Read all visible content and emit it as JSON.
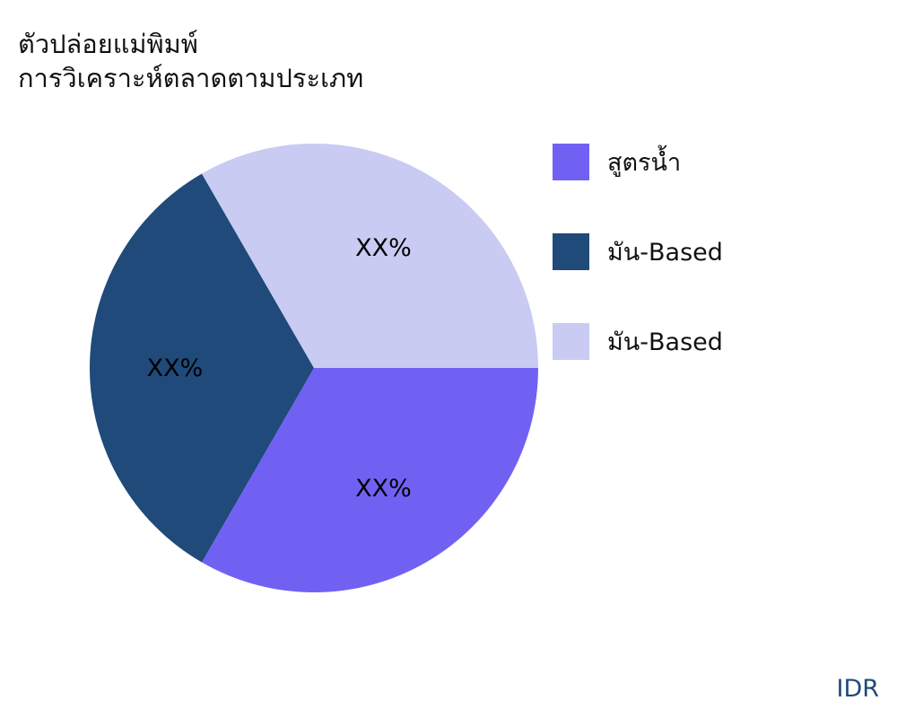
{
  "chart_data": {
    "type": "pie",
    "title": [
      "ตัวปล่อยแม่พิมพ์",
      "การวิเคราะห์ตลาดตามประเภท"
    ],
    "slices": [
      {
        "name": "สูตรน้ำ",
        "value": 33.33,
        "label": "XX%",
        "color": "#7161f3"
      },
      {
        "name": "มัน-Based",
        "value": 33.33,
        "label": "XX%",
        "color": "#1f4a7a"
      },
      {
        "name": "มัน-Based",
        "value": 33.33,
        "label": "XX%",
        "color": "#c9cbf2"
      }
    ],
    "legend_position": "right",
    "start_angle": "east, clockwise"
  },
  "currency": "IDR"
}
